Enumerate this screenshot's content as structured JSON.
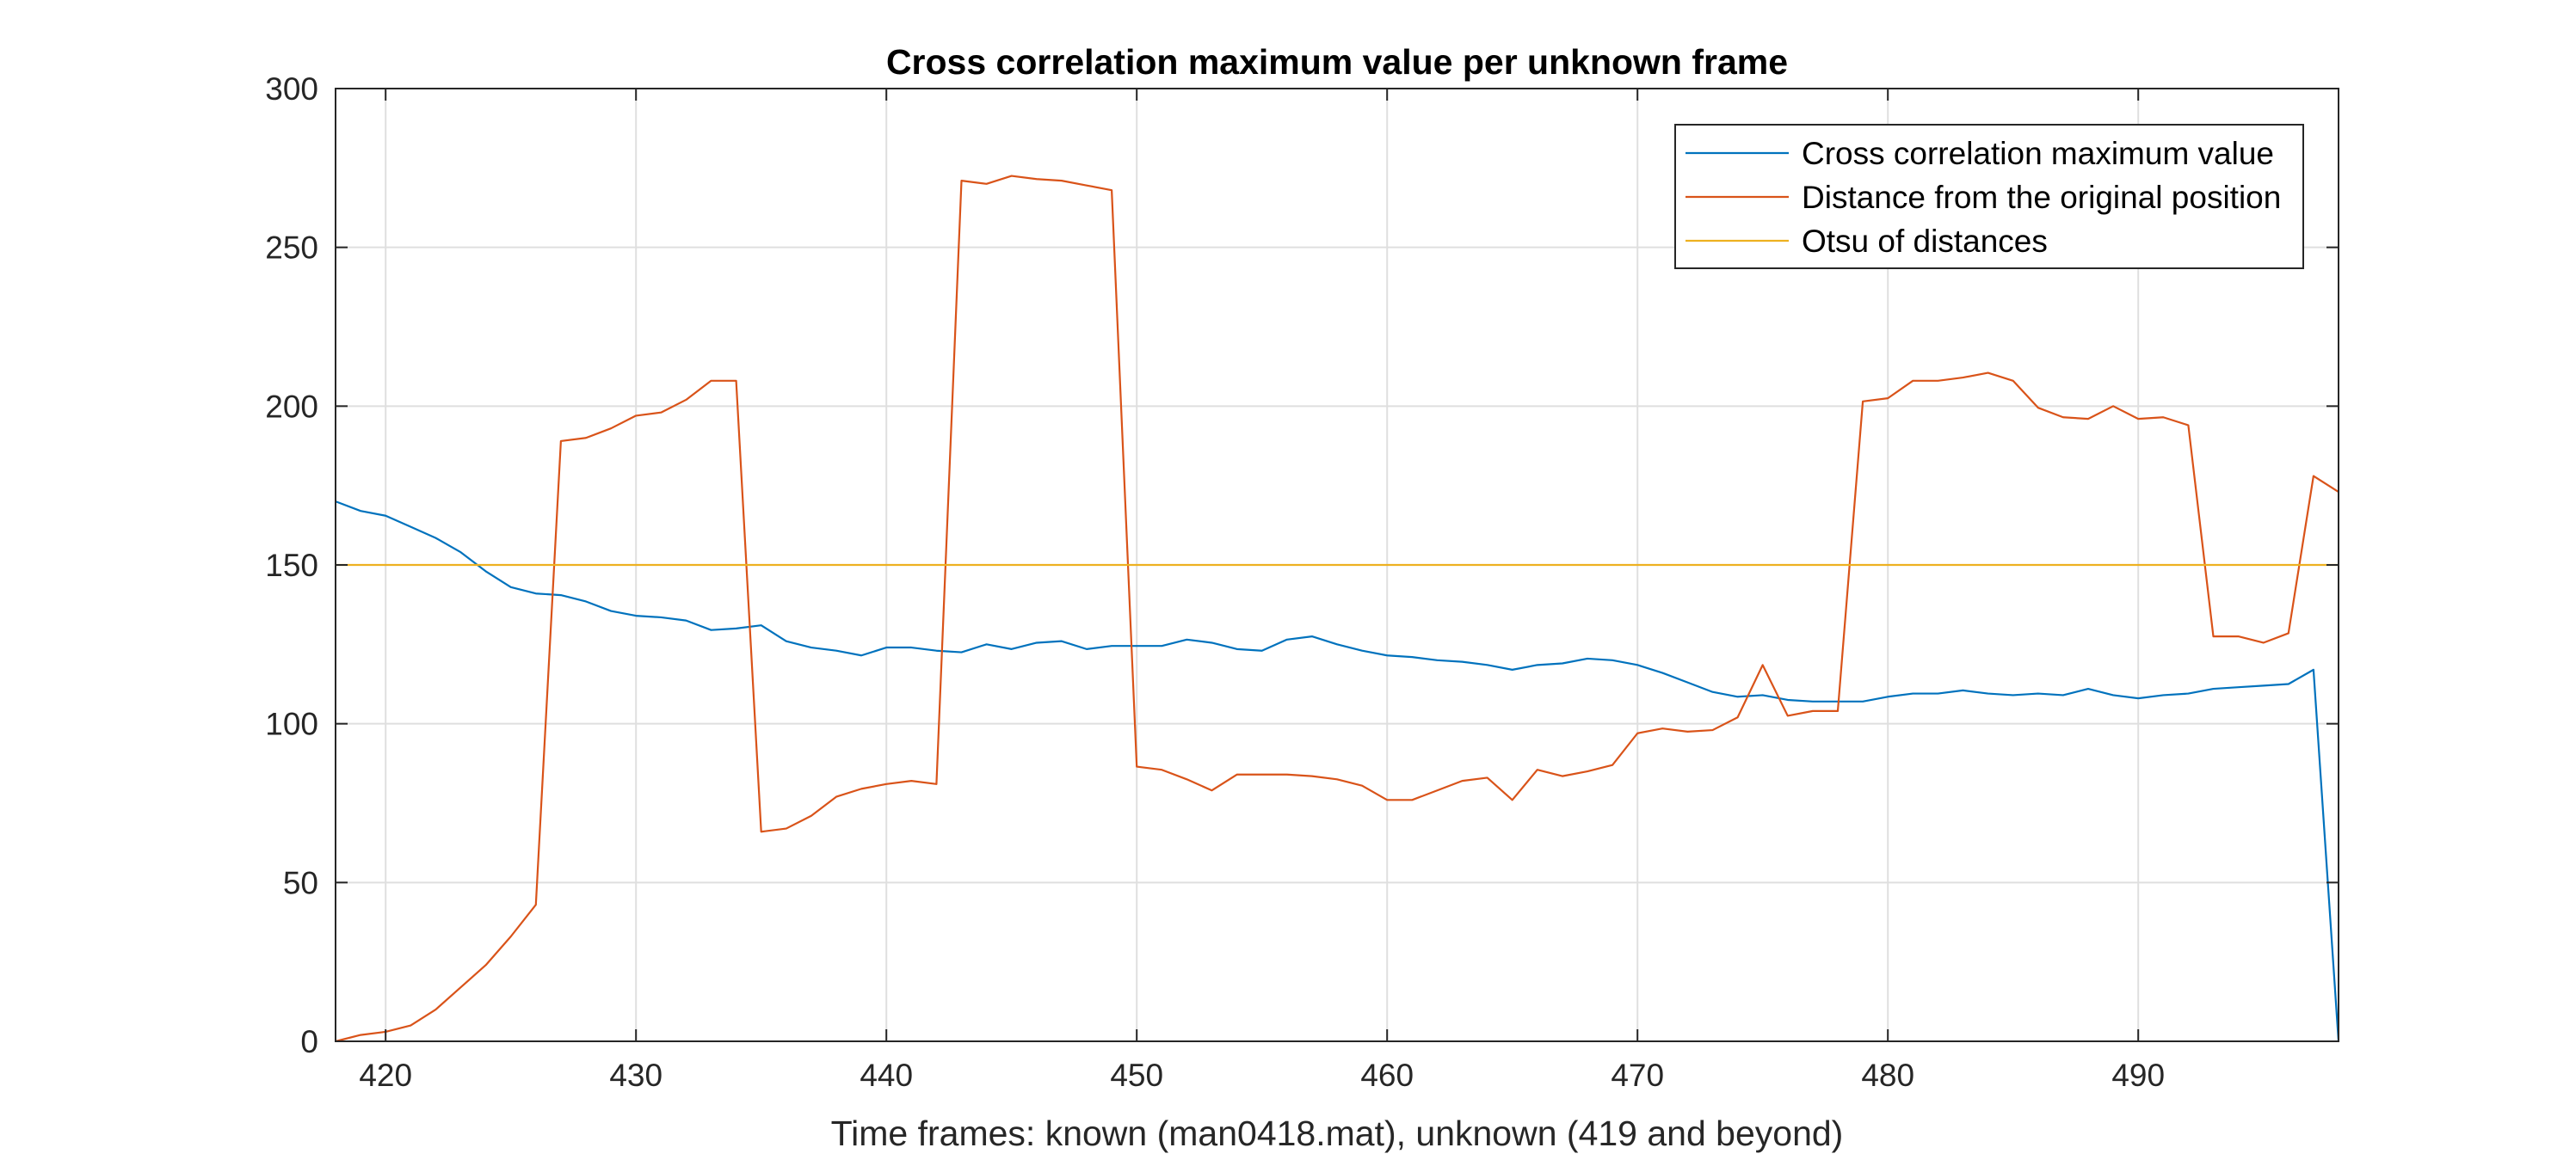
{
  "chart_data": {
    "type": "line",
    "title": "Cross correlation maximum value per unknown frame",
    "xlabel": "Time frames: known (man0418.mat), unknown (419 and beyond)",
    "ylabel": "",
    "xlim": [
      418,
      498
    ],
    "ylim": [
      0,
      300
    ],
    "xticks": [
      420,
      430,
      440,
      450,
      460,
      470,
      480,
      490
    ],
    "yticks": [
      0,
      50,
      100,
      150,
      200,
      250,
      300
    ],
    "grid": true,
    "legend_position": "top-right",
    "series": [
      {
        "name": "Cross correlation maximum value",
        "color": "#0072BD",
        "x": [
          418,
          419,
          420,
          421,
          422,
          423,
          424,
          425,
          426,
          427,
          428,
          429,
          430,
          431,
          432,
          433,
          434,
          435,
          436,
          437,
          438,
          439,
          440,
          441,
          442,
          443,
          444,
          445,
          446,
          447,
          448,
          449,
          450,
          451,
          452,
          453,
          454,
          455,
          456,
          457,
          458,
          459,
          460,
          461,
          462,
          463,
          464,
          465,
          466,
          467,
          468,
          469,
          470,
          471,
          472,
          473,
          474,
          475,
          476,
          477,
          478,
          479,
          480,
          481,
          482,
          483,
          484,
          485,
          486,
          487,
          488,
          489,
          490,
          491,
          492,
          493,
          494,
          495,
          496,
          497,
          498
        ],
        "y": [
          170,
          167,
          165.5,
          162,
          158.5,
          154,
          148,
          143,
          141,
          140.5,
          138.5,
          135.5,
          134,
          133.5,
          132.5,
          129.5,
          130,
          131,
          126,
          124,
          123,
          121.5,
          124,
          124,
          123,
          122.5,
          125,
          123.5,
          125.5,
          126,
          123.5,
          124.5,
          124.5,
          124.5,
          126.5,
          125.5,
          123.5,
          123,
          126.5,
          127.5,
          125,
          123,
          121.5,
          121,
          120,
          119.5,
          118.5,
          117,
          118.5,
          119,
          120.5,
          120,
          118.5,
          116,
          113,
          110,
          108.5,
          109,
          107.5,
          107,
          107,
          107,
          108.5,
          109.5,
          109.5,
          110.5,
          109.5,
          109,
          109.5,
          109,
          111,
          109,
          108,
          109,
          109.5,
          111,
          111.5,
          112,
          112.5,
          117,
          0
        ]
      },
      {
        "name": "Distance from the original position",
        "color": "#D95319",
        "x": [
          418,
          419,
          420,
          421,
          422,
          423,
          424,
          425,
          426,
          427,
          428,
          429,
          430,
          431,
          432,
          433,
          434,
          435,
          436,
          437,
          438,
          439,
          440,
          441,
          442,
          443,
          444,
          445,
          446,
          447,
          448,
          449,
          450,
          451,
          452,
          453,
          454,
          455,
          456,
          457,
          458,
          459,
          460,
          461,
          462,
          463,
          464,
          465,
          466,
          467,
          468,
          469,
          470,
          471,
          472,
          473,
          474,
          475,
          476,
          477,
          478,
          479,
          480,
          481,
          482,
          483,
          484,
          485,
          486,
          487,
          488,
          489,
          490,
          491,
          492,
          493,
          494,
          495,
          496,
          497,
          498
        ],
        "y": [
          0,
          2,
          3,
          5,
          10,
          17,
          24,
          33,
          43,
          189,
          190,
          193,
          197,
          198,
          202,
          208,
          208,
          66,
          67,
          71,
          77,
          79.5,
          81,
          82,
          81,
          271,
          270,
          272.5,
          271.5,
          271,
          269.5,
          268,
          86.5,
          85.5,
          82.5,
          79,
          84,
          84,
          84,
          83.5,
          82.5,
          80.5,
          76,
          76,
          79,
          82,
          83,
          76,
          85.5,
          83.5,
          85,
          87,
          97,
          98.5,
          97.5,
          98,
          102,
          118.5,
          102.5,
          104,
          104,
          201.5,
          202.5,
          208,
          208,
          209,
          210.5,
          208,
          199.5,
          196.5,
          196,
          200,
          196,
          196.5,
          194,
          127.5,
          127.5,
          125.5,
          128.5,
          178,
          173
        ]
      },
      {
        "name": "Otsu of distances",
        "color": "#EDB120",
        "x": [
          418,
          498
        ],
        "y": [
          150,
          150
        ]
      }
    ]
  }
}
